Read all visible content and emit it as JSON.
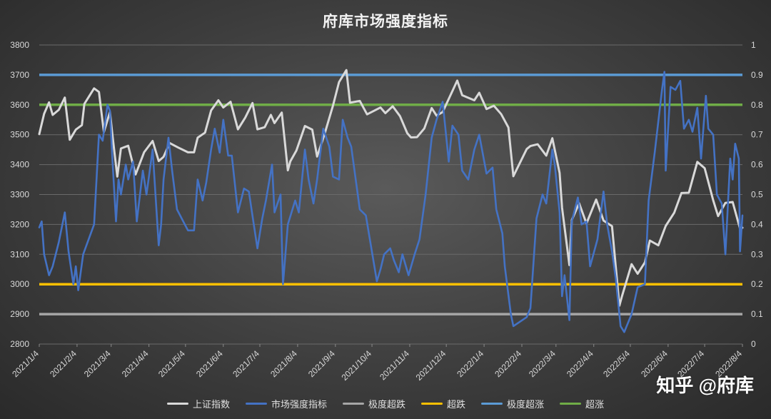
{
  "chart_data": {
    "type": "line",
    "title": "府库市场强度指标",
    "y_left": {
      "min": 2800,
      "max": 3800,
      "step": 100
    },
    "y_right": {
      "min": 0,
      "max": 1,
      "step": 0.1
    },
    "x_start": "2021/1/4",
    "x_end": "2022/8/4",
    "x_tick_labels": [
      "2021/1/4",
      "2021/2/4",
      "2021/3/4",
      "2021/4/4",
      "2021/5/4",
      "2021/6/4",
      "2021/7/4",
      "2021/8/4",
      "2021/9/4",
      "2021/10/4",
      "2021/11/4",
      "2021/12/4",
      "2022/1/4",
      "2022/2/4",
      "2022/3/4",
      "2022/4/4",
      "2022/5/4",
      "2022/6/4",
      "2022/7/4",
      "2022/8/4"
    ],
    "grid": true,
    "legend_position": "bottom",
    "series": [
      {
        "name": "上证指数",
        "axis": "left",
        "color": "#d9d9d9",
        "points": [
          [
            "2021/1/4",
            3502
          ],
          [
            "2021/1/8",
            3570
          ],
          [
            "2021/1/12",
            3608
          ],
          [
            "2021/1/15",
            3566
          ],
          [
            "2021/1/20",
            3583
          ],
          [
            "2021/1/25",
            3624
          ],
          [
            "2021/1/29",
            3483
          ],
          [
            "2021/2/3",
            3517
          ],
          [
            "2021/2/8",
            3532
          ],
          [
            "2021/2/10",
            3603
          ],
          [
            "2021/2/18",
            3655
          ],
          [
            "2021/2/22",
            3643
          ],
          [
            "2021/2/26",
            3509
          ],
          [
            "2021/3/3",
            3576
          ],
          [
            "2021/3/5",
            3501
          ],
          [
            "2021/3/9",
            3360
          ],
          [
            "2021/3/12",
            3454
          ],
          [
            "2021/3/18",
            3463
          ],
          [
            "2021/3/24",
            3367
          ],
          [
            "2021/3/31",
            3441
          ],
          [
            "2021/4/7",
            3479
          ],
          [
            "2021/4/12",
            3412
          ],
          [
            "2021/4/16",
            3426
          ],
          [
            "2021/4/21",
            3472
          ],
          [
            "2021/4/28",
            3457
          ],
          [
            "2021/5/6",
            3441
          ],
          [
            "2021/5/11",
            3441
          ],
          [
            "2021/5/14",
            3490
          ],
          [
            "2021/5/20",
            3507
          ],
          [
            "2021/5/25",
            3581
          ],
          [
            "2021/5/31",
            3615
          ],
          [
            "2021/6/4",
            3591
          ],
          [
            "2021/6/10",
            3610
          ],
          [
            "2021/6/16",
            3518
          ],
          [
            "2021/6/22",
            3557
          ],
          [
            "2021/6/28",
            3606
          ],
          [
            "2021/7/2",
            3518
          ],
          [
            "2021/7/8",
            3525
          ],
          [
            "2021/7/13",
            3566
          ],
          [
            "2021/7/16",
            3539
          ],
          [
            "2021/7/22",
            3574
          ],
          [
            "2021/7/27",
            3381
          ],
          [
            "2021/7/29",
            3411
          ],
          [
            "2021/8/3",
            3447
          ],
          [
            "2021/8/10",
            3529
          ],
          [
            "2021/8/16",
            3517
          ],
          [
            "2021/8/20",
            3427
          ],
          [
            "2021/8/26",
            3501
          ],
          [
            "2021/9/2",
            3597
          ],
          [
            "2021/9/7",
            3676
          ],
          [
            "2021/9/13",
            3716
          ],
          [
            "2021/9/16",
            3607
          ],
          [
            "2021/9/24",
            3613
          ],
          [
            "2021/9/30",
            3568
          ],
          [
            "2021/10/11",
            3591
          ],
          [
            "2021/10/15",
            3572
          ],
          [
            "2021/10/21",
            3595
          ],
          [
            "2021/10/27",
            3562
          ],
          [
            "2021/11/2",
            3505
          ],
          [
            "2021/11/5",
            3491
          ],
          [
            "2021/11/10",
            3492
          ],
          [
            "2021/11/16",
            3521
          ],
          [
            "2021/11/22",
            3589
          ],
          [
            "2021/11/26",
            3564
          ],
          [
            "2021/12/1",
            3576
          ],
          [
            "2021/12/8",
            3637
          ],
          [
            "2021/12/13",
            3681
          ],
          [
            "2021/12/17",
            3632
          ],
          [
            "2021/12/21",
            3625
          ],
          [
            "2021/12/27",
            3615
          ],
          [
            "2021/12/31",
            3640
          ],
          [
            "2022/1/6",
            3586
          ],
          [
            "2022/1/12",
            3597
          ],
          [
            "2022/1/18",
            3569
          ],
          [
            "2022/1/24",
            3524
          ],
          [
            "2022/1/28",
            3361
          ],
          [
            "2022/2/8",
            3452
          ],
          [
            "2022/2/11",
            3462
          ],
          [
            "2022/2/17",
            3468
          ],
          [
            "2022/2/24",
            3430
          ],
          [
            "2022/3/1",
            3488
          ],
          [
            "2022/3/7",
            3372
          ],
          [
            "2022/3/9",
            3256
          ],
          [
            "2022/3/15",
            3064
          ],
          [
            "2022/3/17",
            3215
          ],
          [
            "2022/3/23",
            3271
          ],
          [
            "2022/3/29",
            3203
          ],
          [
            "2022/4/6",
            3283
          ],
          [
            "2022/4/12",
            3213
          ],
          [
            "2022/4/19",
            3194
          ],
          [
            "2022/4/25",
            2928
          ],
          [
            "2022/4/27",
            2958
          ],
          [
            "2022/5/5",
            3067
          ],
          [
            "2022/5/10",
            3035
          ],
          [
            "2022/5/16",
            3073
          ],
          [
            "2022/5/20",
            3146
          ],
          [
            "2022/5/27",
            3130
          ],
          [
            "2022/6/2",
            3195
          ],
          [
            "2022/6/9",
            3239
          ],
          [
            "2022/6/15",
            3305
          ],
          [
            "2022/6/21",
            3306
          ],
          [
            "2022/6/28",
            3409
          ],
          [
            "2022/7/4",
            3388
          ],
          [
            "2022/7/11",
            3281
          ],
          [
            "2022/7/15",
            3228
          ],
          [
            "2022/7/21",
            3272
          ],
          [
            "2022/7/27",
            3275
          ],
          [
            "2022/8/2",
            3186
          ],
          [
            "2022/8/4",
            3189
          ]
        ]
      },
      {
        "name": "市场强度指标",
        "axis": "right",
        "color": "#4472c4",
        "points": [
          [
            "2021/1/4",
            0.39
          ],
          [
            "2021/1/6",
            0.41
          ],
          [
            "2021/1/8",
            0.3
          ],
          [
            "2021/1/12",
            0.23
          ],
          [
            "2021/1/15",
            0.26
          ],
          [
            "2021/1/20",
            0.34
          ],
          [
            "2021/1/25",
            0.44
          ],
          [
            "2021/1/28",
            0.31
          ],
          [
            "2021/2/1",
            0.2
          ],
          [
            "2021/2/3",
            0.26
          ],
          [
            "2021/2/5",
            0.18
          ],
          [
            "2021/2/9",
            0.3
          ],
          [
            "2021/2/18",
            0.4
          ],
          [
            "2021/2/22",
            0.7
          ],
          [
            "2021/2/25",
            0.68
          ],
          [
            "2021/3/1",
            0.8
          ],
          [
            "2021/3/3",
            0.78
          ],
          [
            "2021/3/5",
            0.62
          ],
          [
            "2021/3/8",
            0.41
          ],
          [
            "2021/3/10",
            0.55
          ],
          [
            "2021/3/12",
            0.5
          ],
          [
            "2021/3/16",
            0.6
          ],
          [
            "2021/3/18",
            0.55
          ],
          [
            "2021/3/22",
            0.61
          ],
          [
            "2021/3/25",
            0.41
          ],
          [
            "2021/3/30",
            0.58
          ],
          [
            "2021/4/2",
            0.5
          ],
          [
            "2021/4/7",
            0.65
          ],
          [
            "2021/4/12",
            0.33
          ],
          [
            "2021/4/14",
            0.4
          ],
          [
            "2021/4/16",
            0.55
          ],
          [
            "2021/4/20",
            0.69
          ],
          [
            "2021/4/23",
            0.58
          ],
          [
            "2021/4/27",
            0.45
          ],
          [
            "2021/5/6",
            0.38
          ],
          [
            "2021/5/11",
            0.38
          ],
          [
            "2021/5/14",
            0.55
          ],
          [
            "2021/5/18",
            0.48
          ],
          [
            "2021/5/21",
            0.54
          ],
          [
            "2021/5/25",
            0.65
          ],
          [
            "2021/5/28",
            0.72
          ],
          [
            "2021/6/1",
            0.64
          ],
          [
            "2021/6/4",
            0.75
          ],
          [
            "2021/6/8",
            0.63
          ],
          [
            "2021/6/11",
            0.63
          ],
          [
            "2021/6/16",
            0.44
          ],
          [
            "2021/6/21",
            0.52
          ],
          [
            "2021/6/25",
            0.51
          ],
          [
            "2021/6/29",
            0.4
          ],
          [
            "2021/7/2",
            0.32
          ],
          [
            "2021/7/6",
            0.42
          ],
          [
            "2021/7/9",
            0.48
          ],
          [
            "2021/7/14",
            0.6
          ],
          [
            "2021/7/16",
            0.44
          ],
          [
            "2021/7/21",
            0.5
          ],
          [
            "2021/7/23",
            0.2
          ],
          [
            "2021/7/27",
            0.4
          ],
          [
            "2021/8/2",
            0.48
          ],
          [
            "2021/8/5",
            0.44
          ],
          [
            "2021/8/10",
            0.65
          ],
          [
            "2021/8/13",
            0.55
          ],
          [
            "2021/8/17",
            0.47
          ],
          [
            "2021/8/20",
            0.55
          ],
          [
            "2021/8/25",
            0.72
          ],
          [
            "2021/8/30",
            0.66
          ],
          [
            "2021/9/2",
            0.56
          ],
          [
            "2021/9/7",
            0.55
          ],
          [
            "2021/9/10",
            0.75
          ],
          [
            "2021/9/14",
            0.69
          ],
          [
            "2021/9/17",
            0.66
          ],
          [
            "2021/9/24",
            0.45
          ],
          [
            "2021/9/29",
            0.43
          ],
          [
            "2021/10/8",
            0.21
          ],
          [
            "2021/10/11",
            0.25
          ],
          [
            "2021/10/14",
            0.3
          ],
          [
            "2021/10/19",
            0.32
          ],
          [
            "2021/10/22",
            0.28
          ],
          [
            "2021/10/26",
            0.24
          ],
          [
            "2021/10/29",
            0.3
          ],
          [
            "2021/11/3",
            0.23
          ],
          [
            "2021/11/8",
            0.3
          ],
          [
            "2021/11/12",
            0.35
          ],
          [
            "2021/11/17",
            0.5
          ],
          [
            "2021/11/22",
            0.69
          ],
          [
            "2021/11/26",
            0.75
          ],
          [
            "2021/12/1",
            0.81
          ],
          [
            "2021/12/6",
            0.61
          ],
          [
            "2021/12/9",
            0.73
          ],
          [
            "2021/12/14",
            0.7
          ],
          [
            "2021/12/17",
            0.58
          ],
          [
            "2021/12/22",
            0.55
          ],
          [
            "2021/12/27",
            0.65
          ],
          [
            "2021/12/31",
            0.7
          ],
          [
            "2022/1/6",
            0.57
          ],
          [
            "2022/1/11",
            0.59
          ],
          [
            "2022/1/14",
            0.45
          ],
          [
            "2022/1/19",
            0.37
          ],
          [
            "2022/1/21",
            0.26
          ],
          [
            "2022/1/26",
            0.1
          ],
          [
            "2022/1/28",
            0.06
          ],
          [
            "2022/2/8",
            0.09
          ],
          [
            "2022/2/11",
            0.12
          ],
          [
            "2022/2/16",
            0.42
          ],
          [
            "2022/2/21",
            0.5
          ],
          [
            "2022/2/24",
            0.47
          ],
          [
            "2022/3/1",
            0.65
          ],
          [
            "2022/3/3",
            0.6
          ],
          [
            "2022/3/7",
            0.44
          ],
          [
            "2022/3/9",
            0.16
          ],
          [
            "2022/3/11",
            0.23
          ],
          [
            "2022/3/15",
            0.08
          ],
          [
            "2022/3/17",
            0.41
          ],
          [
            "2022/3/22",
            0.49
          ],
          [
            "2022/3/25",
            0.4
          ],
          [
            "2022/3/29",
            0.41
          ],
          [
            "2022/4/1",
            0.26
          ],
          [
            "2022/4/7",
            0.35
          ],
          [
            "2022/4/12",
            0.51
          ],
          [
            "2022/4/15",
            0.4
          ],
          [
            "2022/4/19",
            0.31
          ],
          [
            "2022/4/22",
            0.22
          ],
          [
            "2022/4/26",
            0.06
          ],
          [
            "2022/4/29",
            0.04
          ],
          [
            "2022/5/5",
            0.1
          ],
          [
            "2022/5/10",
            0.19
          ],
          [
            "2022/5/16",
            0.2
          ],
          [
            "2022/5/19",
            0.48
          ],
          [
            "2022/5/24",
            0.64
          ],
          [
            "2022/5/30",
            0.85
          ],
          [
            "2022/6/1",
            0.91
          ],
          [
            "2022/6/2",
            0.58
          ],
          [
            "2022/6/6",
            0.86
          ],
          [
            "2022/6/10",
            0.85
          ],
          [
            "2022/6/14",
            0.88
          ],
          [
            "2022/6/17",
            0.72
          ],
          [
            "2022/6/21",
            0.75
          ],
          [
            "2022/6/24",
            0.71
          ],
          [
            "2022/6/28",
            0.79
          ],
          [
            "2022/7/1",
            0.62
          ],
          [
            "2022/7/5",
            0.83
          ],
          [
            "2022/7/7",
            0.72
          ],
          [
            "2022/7/11",
            0.7
          ],
          [
            "2022/7/14",
            0.5
          ],
          [
            "2022/7/18",
            0.47
          ],
          [
            "2022/7/21",
            0.3
          ],
          [
            "2022/7/25",
            0.62
          ],
          [
            "2022/7/27",
            0.55
          ],
          [
            "2022/7/29",
            0.67
          ],
          [
            "2022/8/1",
            0.62
          ],
          [
            "2022/8/2",
            0.31
          ],
          [
            "2022/8/4",
            0.43
          ]
        ]
      },
      {
        "name": "极度超跌",
        "axis": "right",
        "color": "#a6a6a6",
        "constant": 0.1
      },
      {
        "name": "超跌",
        "axis": "right",
        "color": "#ffc000",
        "constant": 0.2
      },
      {
        "name": "极度超涨",
        "axis": "right",
        "color": "#5b9bd5",
        "constant": 0.9
      },
      {
        "name": "超涨",
        "axis": "right",
        "color": "#70ad47",
        "constant": 0.8
      }
    ]
  },
  "watermark": {
    "text": "知乎 @府库"
  }
}
